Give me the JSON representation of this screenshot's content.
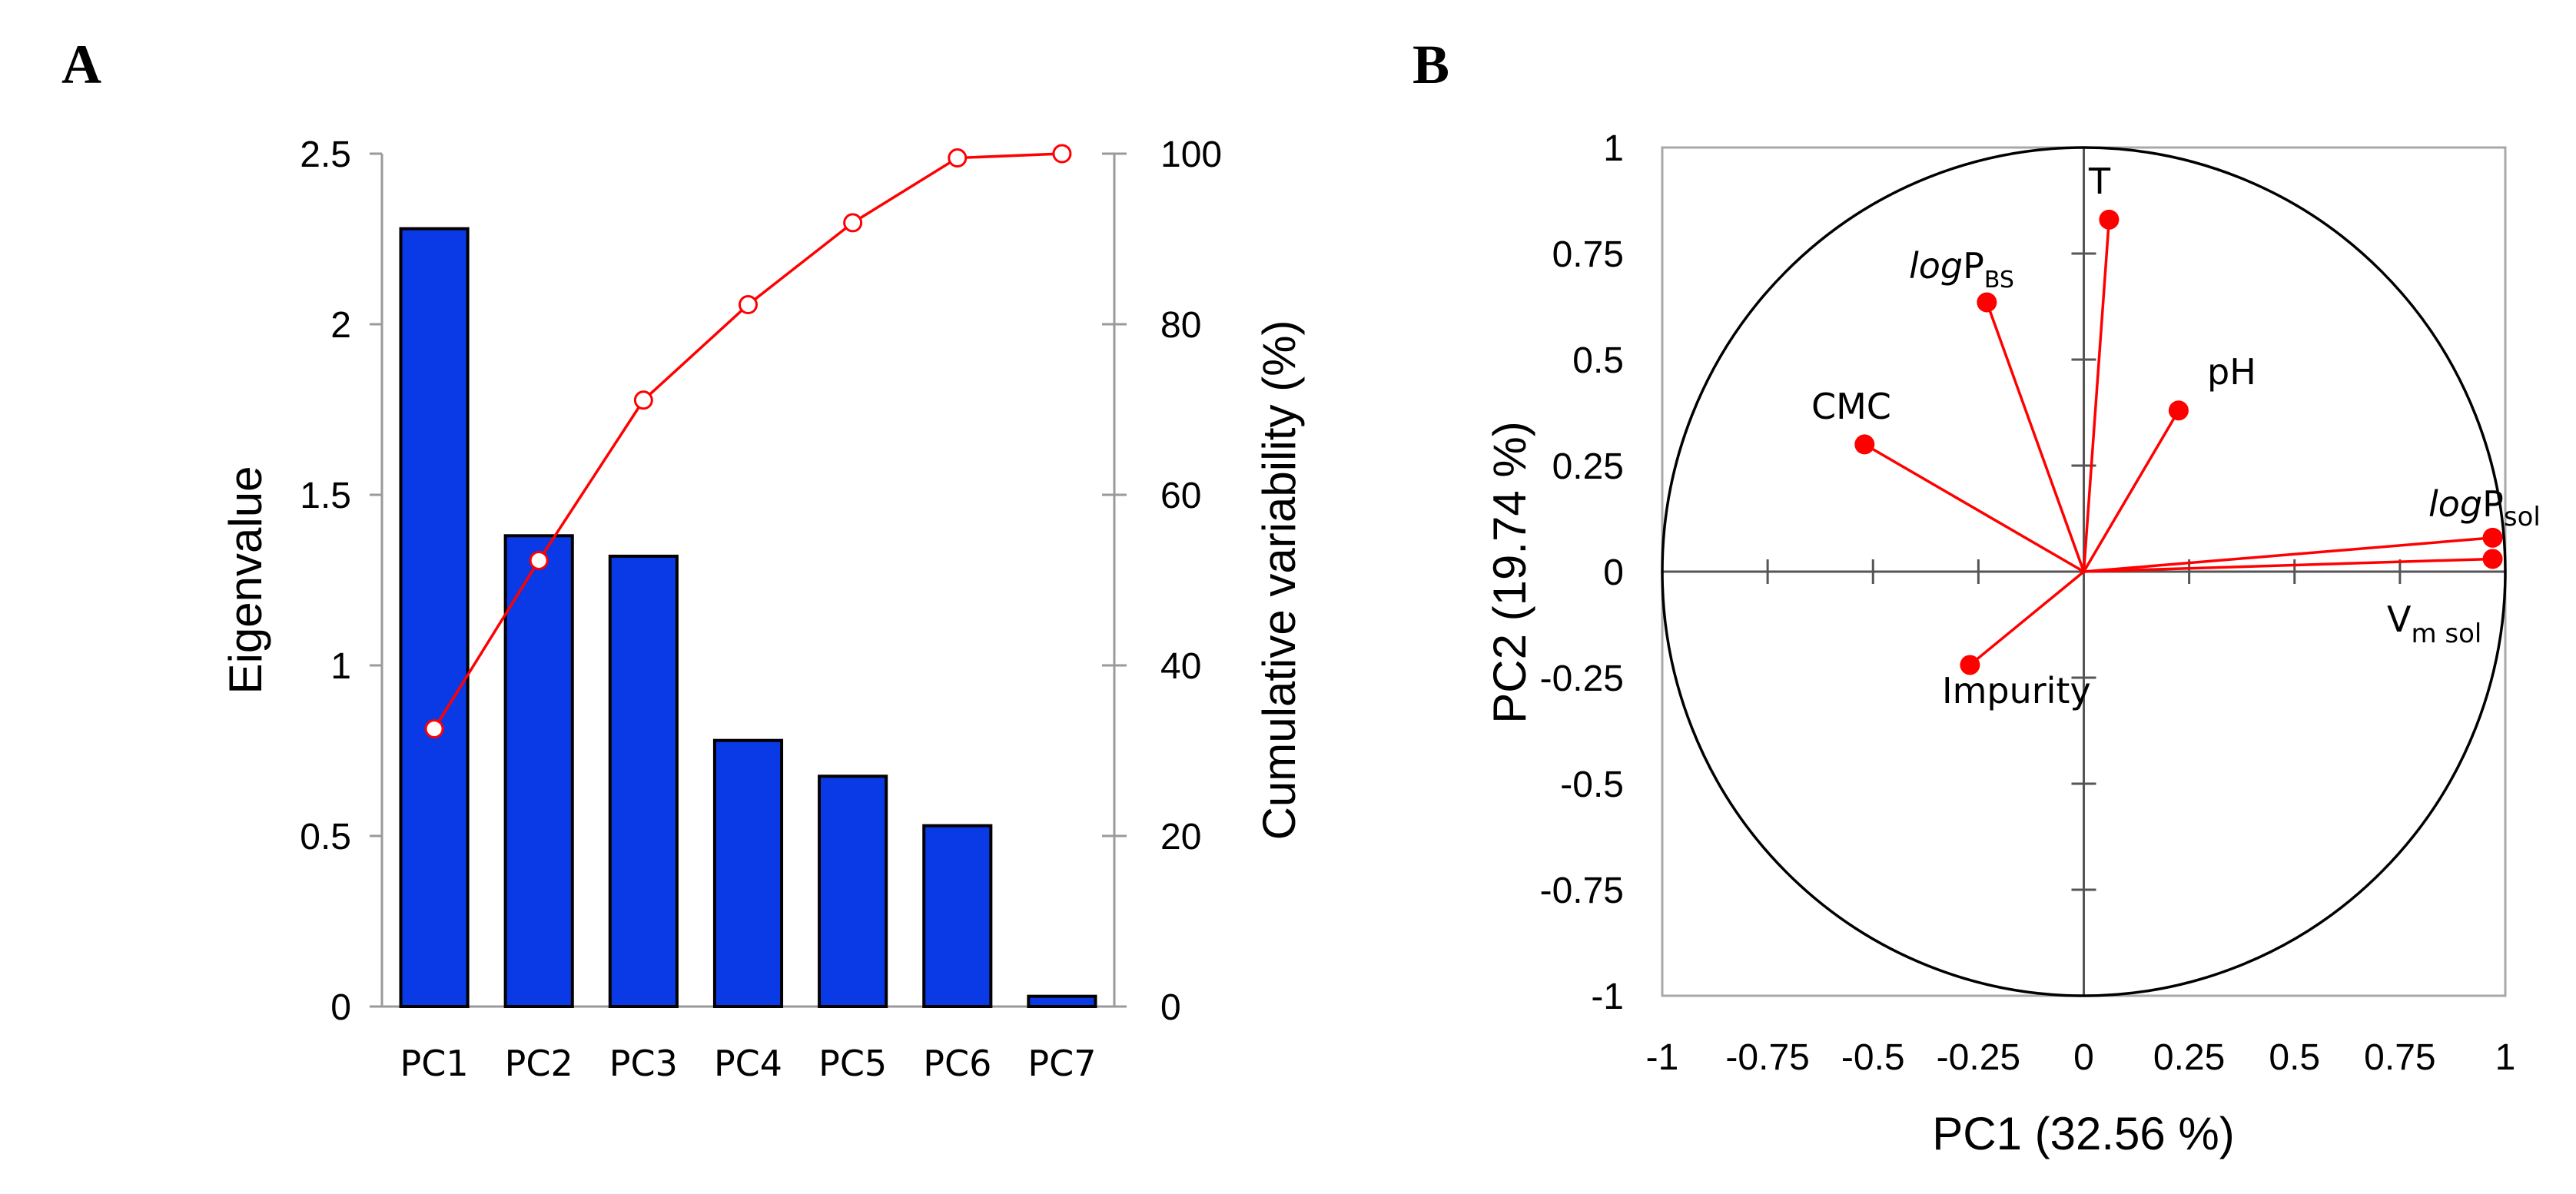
{
  "panel_labels": {
    "a": "A",
    "b": "B"
  },
  "colors": {
    "bar": "#0A3AE6",
    "line": "#FF0000",
    "axis": "#9A9A9A",
    "grid": "#555555"
  },
  "chart_data": [
    {
      "id": "scree",
      "type": "bar",
      "panel": "A",
      "categories": [
        "PC1",
        "PC2",
        "PC3",
        "PC4",
        "PC5",
        "PC6",
        "PC7"
      ],
      "values": [
        2.28,
        1.38,
        1.32,
        0.78,
        0.675,
        0.53,
        0.03
      ],
      "ylabel": "Eigenvalue",
      "ylim": [
        0,
        2.5
      ],
      "yticks": [
        "0",
        "0.5",
        "1",
        "1.5",
        "2",
        "2.5"
      ],
      "secondary": {
        "type": "line",
        "name": "Cumulative variability",
        "values": [
          32.56,
          52.3,
          71.1,
          82.3,
          91.9,
          99.5,
          100
        ],
        "ylabel": "Cumulative variability (%)",
        "ylim": [
          0,
          100
        ],
        "yticks": [
          "0",
          "20",
          "40",
          "60",
          "80",
          "100"
        ]
      },
      "grid": false
    },
    {
      "id": "loadings",
      "type": "scatter",
      "panel": "B",
      "xlabel": "PC1 (32.56 %)",
      "ylabel": "PC2 (19.74 %)",
      "xlim": [
        -1,
        1
      ],
      "ylim": [
        -1,
        1
      ],
      "xticks": [
        "-1",
        "-0.75",
        "-0.5",
        "-0.25",
        "0",
        "0.25",
        "0.5",
        "0.75",
        "1"
      ],
      "yticks": [
        "-1",
        "-0.75",
        "-0.5",
        "-0.25",
        "0",
        "0.25",
        "0.5",
        "0.75",
        "1"
      ],
      "unit_circle": true,
      "variables": [
        {
          "name": "T",
          "x": 0.06,
          "y": 0.83
        },
        {
          "name": "logPBS",
          "x": -0.23,
          "y": 0.635
        },
        {
          "name": "pH",
          "x": 0.225,
          "y": 0.38
        },
        {
          "name": "CMC",
          "x": -0.52,
          "y": 0.3
        },
        {
          "name": "logPsol",
          "x": 0.97,
          "y": 0.08
        },
        {
          "name": "Vm sol",
          "x": 0.97,
          "y": 0.03
        },
        {
          "name": "Impurity",
          "x": -0.27,
          "y": -0.22
        }
      ],
      "labels": {
        "T": "T",
        "logPBS_italic": "log",
        "logPBS_main": "P",
        "logPBS_sub": "BS",
        "pH": "pH",
        "CMC": "CMC",
        "logPsol_italic": "log",
        "logPsol_main": "P",
        "logPsol_sub": "sol",
        "Vmsol_main": "V",
        "Vmsol_sub": "m sol",
        "Impurity": "Impurity"
      }
    }
  ]
}
